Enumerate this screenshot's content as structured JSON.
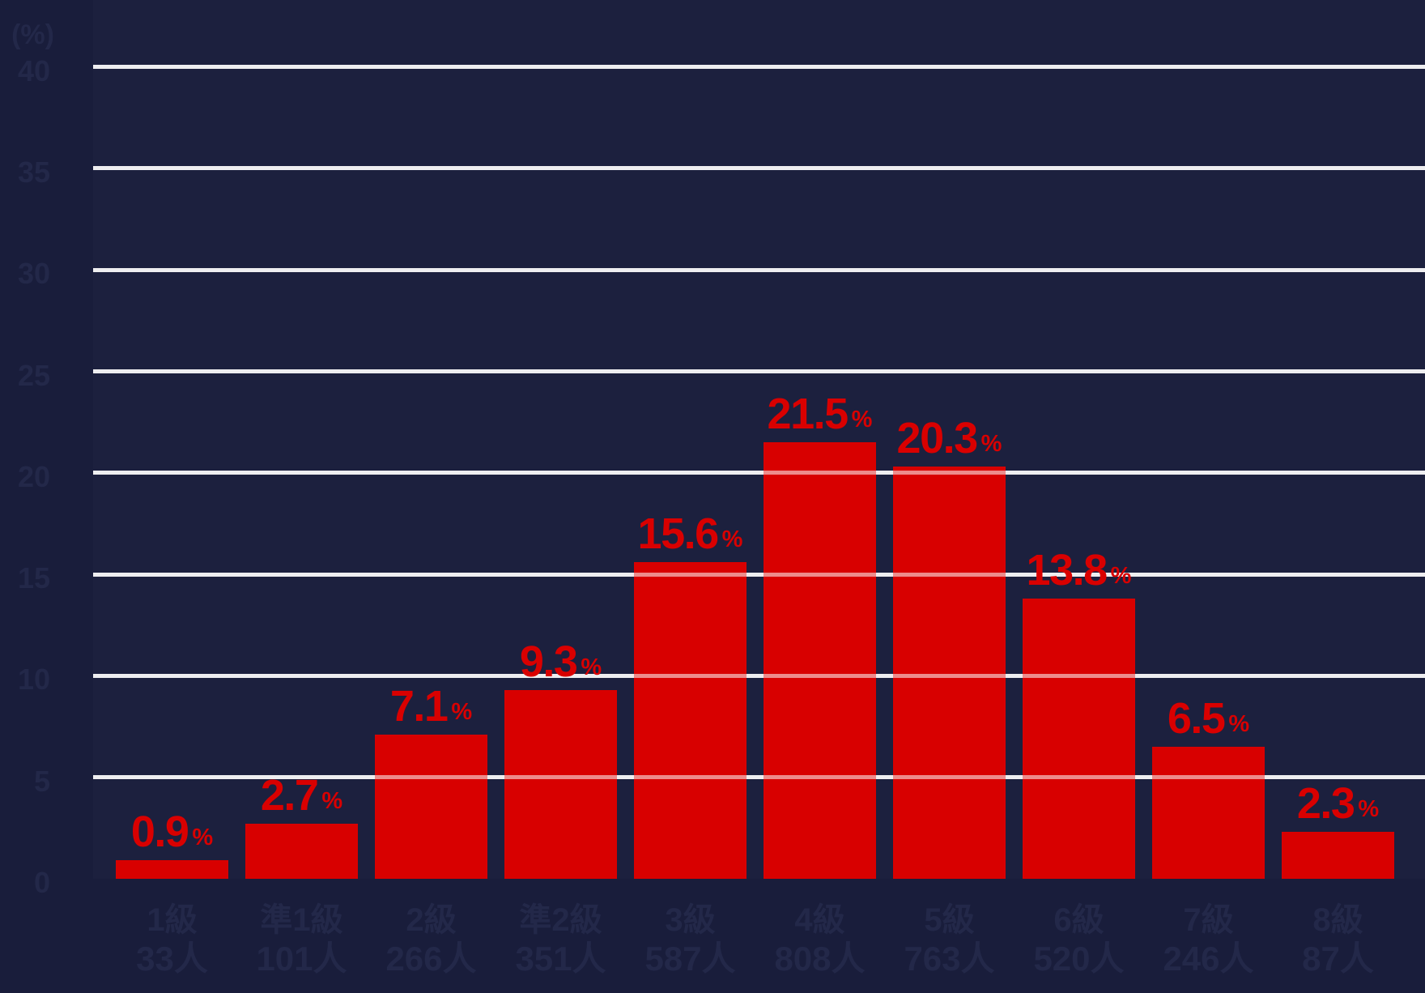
{
  "chart_data": {
    "type": "bar",
    "title": "",
    "categories": [
      "1級",
      "準1級",
      "2級",
      "準2級",
      "3級",
      "4級",
      "5級",
      "6級",
      "7級",
      "8級"
    ],
    "values": [
      0.9,
      2.7,
      7.1,
      9.3,
      15.6,
      21.5,
      20.3,
      13.8,
      6.5,
      2.3
    ],
    "counts": [
      33,
      101,
      266,
      351,
      587,
      808,
      763,
      520,
      246,
      87
    ],
    "value_suffix": "%",
    "count_suffix": "人",
    "xlabel": "",
    "ylabel": "(%)",
    "y_ticks": [
      40,
      35,
      30,
      25,
      20,
      15,
      10,
      5,
      0
    ],
    "ylim": [
      0,
      43
    ],
    "grid": true,
    "legend": "none",
    "colors": {
      "background": "#191d3b",
      "bar": "#d80000",
      "value_label": "#d90000",
      "gridline": "#d9dade",
      "gridline_over_bar": "rgba(255,255,255,0.55)",
      "axis_label": "#232849"
    }
  }
}
